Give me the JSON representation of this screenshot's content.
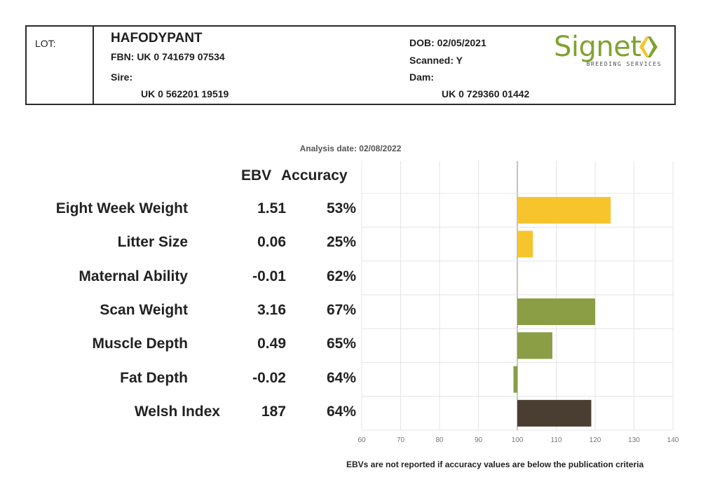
{
  "header": {
    "lot_label": "LOT:",
    "name": "HAFODYPANT",
    "fbn": "FBN: UK 0 741679 07534",
    "sire_label": "Sire:",
    "sire_id": "UK 0 562201 19519",
    "dob": "DOB: 02/05/2021",
    "scanned": "Scanned: Y",
    "dam_label": "Dam:",
    "dam_id": "UK 0 729360 01442",
    "logo_text": "Signet",
    "logo_sub": "BREEDING SERVICES"
  },
  "analysis_date": "Analysis date: 02/08/2022",
  "columns": {
    "ebv": "EBV",
    "accuracy": "Accuracy"
  },
  "footnote": "EBVs are not reported if accuracy values are below the publication criteria",
  "colors": {
    "maternal": "#f6c42d",
    "production": "#8b9e45",
    "index": "#4a3d31"
  },
  "chart_data": {
    "type": "bar",
    "orientation": "horizontal",
    "baseline": 100,
    "xlim": [
      60,
      140
    ],
    "xticks": [
      "60",
      "70",
      "80",
      "90",
      "100",
      "110",
      "120",
      "130",
      "140"
    ],
    "grid": true,
    "rows": [
      {
        "trait": "Eight Week Weight",
        "ebv": "1.51",
        "accuracy": "53%",
        "value": 124,
        "color": "#f6c42d"
      },
      {
        "trait": "Litter Size",
        "ebv": "0.06",
        "accuracy": "25%",
        "value": 104,
        "color": "#f6c42d"
      },
      {
        "trait": "Maternal Ability",
        "ebv": "-0.01",
        "accuracy": "62%",
        "value": 100,
        "color": "#f6c42d"
      },
      {
        "trait": "Scan Weight",
        "ebv": "3.16",
        "accuracy": "67%",
        "value": 120,
        "color": "#8b9e45"
      },
      {
        "trait": "Muscle Depth",
        "ebv": "0.49",
        "accuracy": "65%",
        "value": 109,
        "color": "#8b9e45"
      },
      {
        "trait": "Fat Depth",
        "ebv": "-0.02",
        "accuracy": "64%",
        "value": 99,
        "color": "#8b9e45"
      },
      {
        "trait": "Welsh Index",
        "ebv": "187",
        "accuracy": "64%",
        "value": 119,
        "color": "#4a3d31"
      }
    ]
  }
}
